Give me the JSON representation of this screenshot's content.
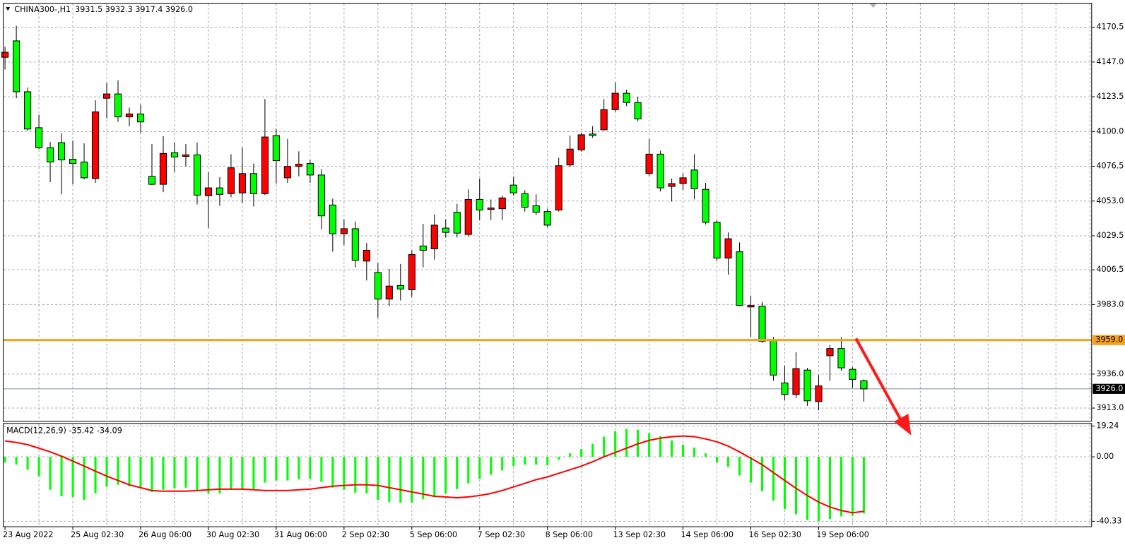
{
  "chart_data": [
    {
      "type": "candlestick",
      "title": "CHINA300-,H1",
      "ohlc_label": "3931.5 3932.3 3917.4 3926.0",
      "categories": [
        "23 Aug 2022",
        null,
        null,
        null,
        null,
        null,
        "25 Aug 02:30",
        null,
        null,
        null,
        null,
        null,
        "26 Aug 06:00",
        null,
        null,
        null,
        null,
        null,
        "30 Aug 02:30",
        null,
        null,
        null,
        null,
        null,
        "31 Aug 06:00",
        null,
        null,
        null,
        null,
        null,
        "2 Sep 02:30",
        null,
        null,
        null,
        null,
        null,
        "5 Sep 06:00",
        null,
        null,
        null,
        null,
        null,
        "7 Sep 02:30",
        null,
        null,
        null,
        null,
        null,
        "8 Sep 06:00",
        null,
        null,
        null,
        null,
        null,
        "13 Sep 02:30",
        null,
        null,
        null,
        null,
        null,
        "14 Sep 06:00",
        null,
        null,
        null,
        null,
        null,
        "16 Sep 02:30",
        null,
        null,
        null,
        null,
        null,
        "19 Sep 06:00",
        null,
        null,
        null,
        null
      ],
      "open": [
        4150.2,
        4161.3,
        4126.9,
        4102.6,
        4089.1,
        4092.5,
        4081.3,
        4079.4,
        4068.2,
        4122.5,
        4125.4,
        4109.9,
        4111.9,
        4069.7,
        4064.3,
        4085.7,
        4083.2,
        4084.2,
        4056.6,
        4061.9,
        4058.0,
        4058.5,
        4071.6,
        4058.0,
        4097.3,
        4068.7,
        4076.4,
        4078.4,
        4070.6,
        4050.3,
        4030.9,
        4034.3,
        4012.4,
        4004.7,
        3986.7,
        3995.9,
        3993.0,
        4022.6,
        4020.7,
        4034.7,
        4045.4,
        4030.4,
        4054.1,
        4047.3,
        4047.8,
        4063.8,
        4058.0,
        4049.8,
        4045.9,
        4046.9,
        4077.4,
        4087.6,
        4098.3,
        4101.2,
        4114.8,
        4125.9,
        4119.6,
        4071.6,
        4084.7,
        4062.9,
        4064.8,
        4074.0,
        4060.9,
        4038.6,
        4014.4,
        4018.7,
        3981.4,
        3981.9,
        3959.1,
        3930.0,
        3922.2,
        3938.7,
        3917.4,
        3948.4,
        3953.3,
        3939.2,
        3931.5
      ],
      "high": [
        4157.4,
        4171.5,
        4129.8,
        4111.4,
        4092.9,
        4098.8,
        4093.9,
        4092.0,
        4121.1,
        4132.7,
        4134.6,
        4116.2,
        4118.2,
        4091.5,
        4096.8,
        4092.5,
        4091.5,
        4092.5,
        4072.6,
        4069.2,
        4084.7,
        4089.1,
        4078.4,
        4122.0,
        4101.7,
        4094.9,
        4086.6,
        4080.8,
        4074.5,
        4054.6,
        4040.6,
        4039.1,
        4024.6,
        4011.0,
        4007.1,
        4010.5,
        4019.7,
        4037.6,
        4044.0,
        4040.6,
        4051.2,
        4060.9,
        4068.2,
        4054.1,
        4056.6,
        4069.2,
        4060.4,
        4057.5,
        4047.8,
        4082.3,
        4097.3,
        4099.2,
        4103.6,
        4122.0,
        4133.2,
        4128.3,
        4123.5,
        4094.9,
        4087.1,
        4068.2,
        4071.6,
        4084.7,
        4065.3,
        4040.1,
        4031.8,
        4025.0,
        3989.1,
        3984.8,
        3961.0,
        3941.6,
        3950.8,
        3940.2,
        3935.3,
        3955.7,
        3961.0,
        3940.6,
        3932.3
      ],
      "low": [
        4141.9,
        4122.5,
        4100.7,
        4088.1,
        4065.8,
        4057.5,
        4064.3,
        4067.7,
        4065.3,
        4108.9,
        4106.5,
        4103.6,
        4099.2,
        4063.8,
        4059.0,
        4072.6,
        4076.4,
        4050.7,
        4034.7,
        4049.8,
        4055.6,
        4051.7,
        4049.3,
        4057.0,
        4064.8,
        4065.3,
        4069.7,
        4065.3,
        4033.8,
        4018.7,
        4023.1,
        4008.1,
        3999.3,
        3974.1,
        3981.9,
        3985.8,
        3988.2,
        4008.1,
        4013.4,
        4028.4,
        4028.4,
        4028.9,
        4040.1,
        4040.1,
        4040.1,
        4056.6,
        4045.9,
        4043.5,
        4035.2,
        4045.9,
        4076.0,
        4086.6,
        4095.8,
        4100.7,
        4113.3,
        4117.2,
        4107.0,
        4070.1,
        4059.5,
        4052.7,
        4060.4,
        4054.1,
        4037.2,
        4012.4,
        4003.2,
        3981.9,
        3961.0,
        3957.1,
        3931.4,
        3918.3,
        3919.8,
        3914.5,
        3911.5,
        3931.4,
        3938.2,
        3926.6,
        3917.4
      ],
      "close": [
        4153.6,
        4126.9,
        4101.7,
        4089.1,
        4079.4,
        4080.8,
        4078.4,
        4068.7,
        4113.3,
        4125.4,
        4109.9,
        4111.9,
        4106.5,
        4064.3,
        4085.2,
        4082.8,
        4084.2,
        4057.0,
        4061.9,
        4057.5,
        4075.5,
        4071.6,
        4058.0,
        4096.3,
        4080.3,
        4076.4,
        4077.9,
        4070.6,
        4043.0,
        4030.9,
        4034.3,
        4012.9,
        4019.7,
        3986.7,
        3995.5,
        3993.5,
        4016.8,
        4019.7,
        4036.7,
        4031.8,
        4031.3,
        4054.1,
        4046.9,
        4048.3,
        4055.1,
        4058.5,
        4048.8,
        4045.4,
        4036.7,
        4076.9,
        4088.1,
        4097.8,
        4097.3,
        4114.8,
        4125.9,
        4119.6,
        4108.5,
        4084.7,
        4061.9,
        4064.8,
        4068.7,
        4061.4,
        4038.6,
        4014.4,
        4027.5,
        3982.4,
        3982.4,
        3958.1,
        3935.3,
        3922.2,
        3939.7,
        3917.9,
        3928.0,
        3953.3,
        3940.2,
        3932.4,
        3926.0
      ],
      "up_color": "#ff0000",
      "down_color": "#00ff00",
      "ylim": [
        3904.3,
        4187
      ],
      "yticks": [
        4170.5,
        {
          "value": 4147,
          "label": "4147.0"
        },
        4123.5,
        {
          "value": 4100,
          "label": "4100.0"
        },
        4076.5,
        {
          "value": 4053,
          "label": "4053.0"
        },
        4029.5,
        4006.5,
        {
          "value": 3983,
          "label": "3983.0"
        },
        {
          "value": 3936,
          "label": "3936.0"
        },
        {
          "value": 3913,
          "label": "3913.0"
        }
      ],
      "grid": true,
      "levels": [
        {
          "value": 3959,
          "label": "3959.0",
          "color": "#f7a11a"
        }
      ],
      "bid": {
        "value": 3926,
        "label": "3926.0"
      }
    },
    {
      "type": "combo",
      "title": "MACD(12,26,9) -35.42 -34.09",
      "series": [
        {
          "type": "bar",
          "color": "#00ff00",
          "values": [
            -3.6,
            -4.9,
            -8.1,
            -12.1,
            -20.6,
            -24.7,
            -25.1,
            -26.9,
            -22.9,
            -18.8,
            -17.5,
            -18.4,
            -18.8,
            -22.0,
            -20.6,
            -19.7,
            -19.3,
            -21.5,
            -22.9,
            -22.9,
            -20.6,
            -20.2,
            -20.2,
            -16.1,
            -14.8,
            -14.8,
            -13.9,
            -13.9,
            -15.7,
            -19.3,
            -20.6,
            -22.4,
            -22.9,
            -26.9,
            -28.3,
            -28.7,
            -28.7,
            -26.5,
            -25.1,
            -22.9,
            -20.2,
            -16.6,
            -13.9,
            -11.2,
            -8.5,
            -5.8,
            -4.9,
            -4.9,
            -5.4,
            -1.8,
            2.2,
            4.9,
            8.1,
            12.6,
            16.1,
            17.5,
            17.0,
            14.8,
            13.0,
            10.3,
            7.6,
            5.8,
            2.2,
            -3.6,
            -6.3,
            -11.7,
            -16.1,
            -21.5,
            -27.4,
            -32.7,
            -35.9,
            -39.5,
            -40.3,
            -39.0,
            -37.2,
            -36.8,
            -35.42
          ]
        },
        {
          "type": "line",
          "color": "#ff0000",
          "values": [
            9.9,
            9.0,
            7.6,
            5.4,
            3.1,
            0.4,
            -2.7,
            -5.8,
            -9.0,
            -12.1,
            -14.8,
            -17.5,
            -19.3,
            -21.1,
            -21.5,
            -21.5,
            -21.5,
            -21.1,
            -20.6,
            -20.2,
            -20.2,
            -20.2,
            -20.6,
            -21.1,
            -21.1,
            -21.1,
            -20.6,
            -20.2,
            -19.3,
            -18.4,
            -17.9,
            -17.5,
            -17.5,
            -17.9,
            -19.3,
            -20.6,
            -22.0,
            -23.3,
            -24.7,
            -25.1,
            -25.6,
            -25.1,
            -24.2,
            -22.9,
            -21.1,
            -18.8,
            -16.6,
            -14.3,
            -12.6,
            -10.3,
            -8.1,
            -5.8,
            -3.1,
            0.0,
            2.7,
            5.4,
            8.1,
            10.3,
            11.7,
            12.6,
            13.0,
            12.6,
            11.2,
            9.4,
            6.7,
            3.1,
            -0.9,
            -4.9,
            -9.9,
            -14.8,
            -19.7,
            -24.2,
            -28.3,
            -31.4,
            -33.6,
            -35.0,
            -34.09
          ]
        }
      ],
      "ylim": [
        -43.5,
        21.1
      ],
      "yticks": [
        19.24,
        {
          "value": 0,
          "label": "0.00"
        },
        -40.33
      ],
      "grid": true
    }
  ]
}
